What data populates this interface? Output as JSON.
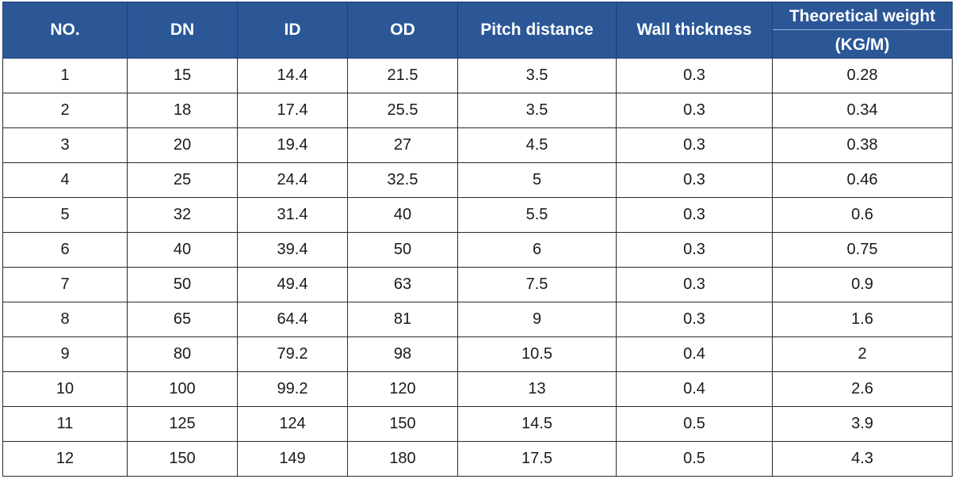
{
  "table": {
    "headers": {
      "no": "NO.",
      "dn": "DN",
      "id": "ID",
      "od": "OD",
      "pitch": "Pitch distance",
      "wall": "Wall thickness",
      "weight_top": "Theoretical weight",
      "weight_bottom": "(KG/M)"
    },
    "header_color": "#2b5797",
    "rows": [
      [
        "1",
        "15",
        "14.4",
        "21.5",
        "3.5",
        "0.3",
        "0.28"
      ],
      [
        "2",
        "18",
        "17.4",
        "25.5",
        "3.5",
        "0.3",
        "0.34"
      ],
      [
        "3",
        "20",
        "19.4",
        "27",
        "4.5",
        "0.3",
        "0.38"
      ],
      [
        "4",
        "25",
        "24.4",
        "32.5",
        "5",
        "0.3",
        "0.46"
      ],
      [
        "5",
        "32",
        "31.4",
        "40",
        "5.5",
        "0.3",
        "0.6"
      ],
      [
        "6",
        "40",
        "39.4",
        "50",
        "6",
        "0.3",
        "0.75"
      ],
      [
        "7",
        "50",
        "49.4",
        "63",
        "7.5",
        "0.3",
        "0.9"
      ],
      [
        "8",
        "65",
        "64.4",
        "81",
        "9",
        "0.3",
        "1.6"
      ],
      [
        "9",
        "80",
        "79.2",
        "98",
        "10.5",
        "0.4",
        "2"
      ],
      [
        "10",
        "100",
        "99.2",
        "120",
        "13",
        "0.4",
        "2.6"
      ],
      [
        "11",
        "125",
        "124",
        "150",
        "14.5",
        "0.5",
        "3.9"
      ],
      [
        "12",
        "150",
        "149",
        "180",
        "17.5",
        "0.5",
        "4.3"
      ]
    ]
  }
}
